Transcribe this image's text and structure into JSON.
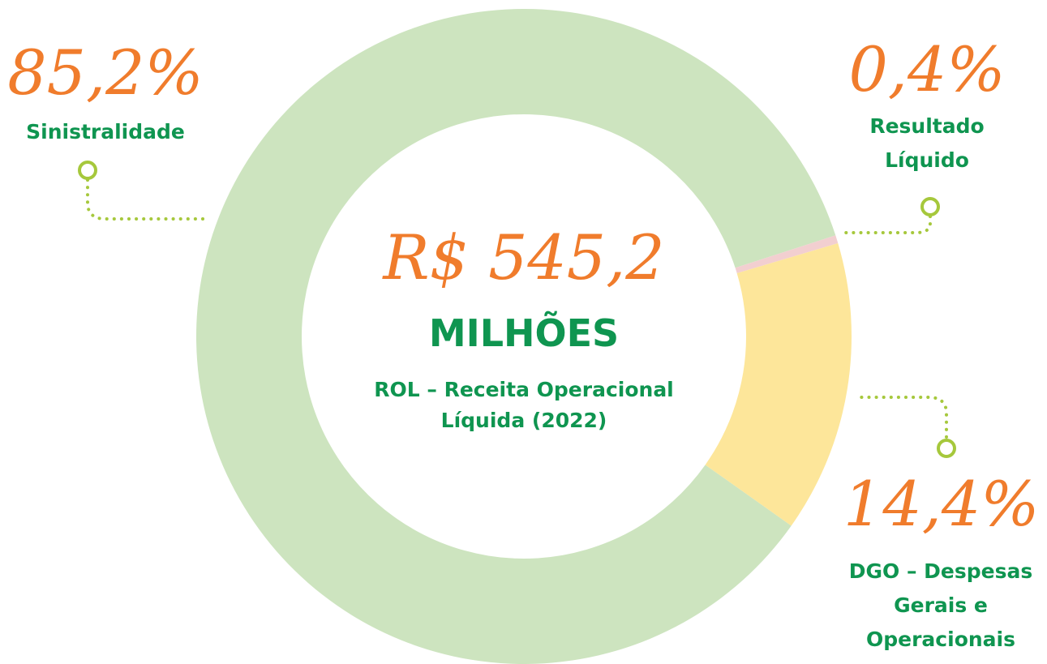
{
  "chart_data": {
    "type": "donut",
    "categories": [
      "Sinistralidade",
      "Resultado Líquido",
      "DGO – Despesas Gerais e Operacionais"
    ],
    "values": [
      85.2,
      0.4,
      14.4
    ],
    "value_labels": [
      "85,2%",
      "0,4%",
      "14,4%"
    ],
    "colors": [
      "#cde4bf",
      "#f2cfd0",
      "#fde69a"
    ],
    "center": {
      "amount": "R$ 545,2",
      "unit": "MILHÕES",
      "caption": "ROL – Receita Operacional Líquida (2022)"
    }
  }
}
